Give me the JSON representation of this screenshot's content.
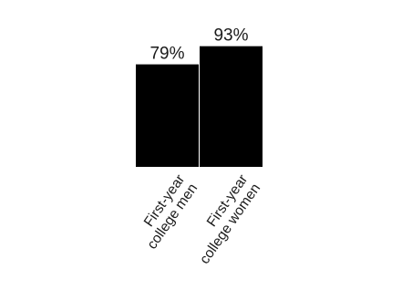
{
  "chart_data": {
    "type": "bar",
    "categories": [
      [
        "First-year",
        "college men"
      ],
      [
        "First-year",
        "college women"
      ]
    ],
    "values": [
      79,
      93
    ],
    "value_labels": [
      "79%",
      "93%"
    ],
    "ylim": [
      0,
      100
    ],
    "bar_color": "#000000",
    "text_color": "#1a1a1a",
    "title": "",
    "xlabel": "",
    "ylabel": ""
  }
}
